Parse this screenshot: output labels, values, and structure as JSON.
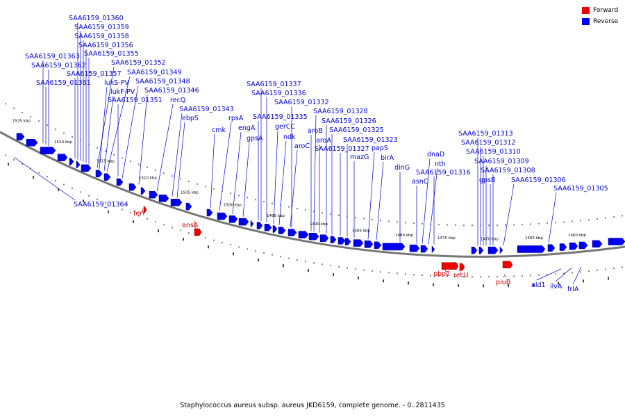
{
  "legend": {
    "forward_label": "Forward",
    "reverse_label": "Reverse",
    "forward_color": "#ee0000",
    "reverse_color": "#0000ee"
  },
  "caption": "Staphylococcus aureus subsp. aureus JKD6159, complete genome. - 0..2811435",
  "ruler_labels": [
    "1525 kbp",
    "1520 kbp",
    "1515 kbp",
    "1510 kbp",
    "1505 kbp",
    "1500 kbp",
    "1495 kbp",
    "1490 kbp",
    "1485 kbp",
    "1480 kbp",
    "1475 kbp",
    "1470 kbp",
    "1465 kbp",
    "1460 kbp"
  ],
  "reverse_genes": [
    "SAA6159_01360",
    "SAA6159_01359",
    "SAA6159_01358",
    "SAA6159_01356",
    "SAA6159_01355",
    "SAA6159_01363",
    "SAA6159_01352",
    "SAA6159_01362",
    "SAA6159_01357",
    "SAA6159_01349",
    "SAA6159_01361",
    "lukS-PV",
    "SAA6159_01348",
    "lukF-PV",
    "SAA6159_01346",
    "SAA6159_01351",
    "recQ",
    "SAA6159_01343",
    "ebpS",
    "cmk",
    "rpsA",
    "engA",
    "gpsA",
    "SAA6159_01337",
    "SAA6159_01336",
    "SAA6159_01332",
    "SAA6159_01335",
    "gerCC",
    "ndk",
    "aroC",
    "SAA6159_01328",
    "aroB",
    "aroA",
    "SAA6159_01326",
    "SAA6159_01325",
    "SAA6159_01327",
    "SAA6159_01323",
    "mazG",
    "papS",
    "birA",
    "dinG",
    "dnaD",
    "nth",
    "SAA6159_01316",
    "asnC",
    "SAA6159_01313",
    "SAA6159_01312",
    "SAA6159_01310",
    "SAA6159_01309",
    "SAA6159_01308",
    "gpsB",
    "SAA6159_01306",
    "SAA6159_01305",
    "SAA6159_01364",
    "ald1",
    "ilvA",
    "frlA"
  ],
  "forward_genes": [
    "fer",
    "ansA",
    "pbp2",
    "recU",
    "piuB"
  ]
}
